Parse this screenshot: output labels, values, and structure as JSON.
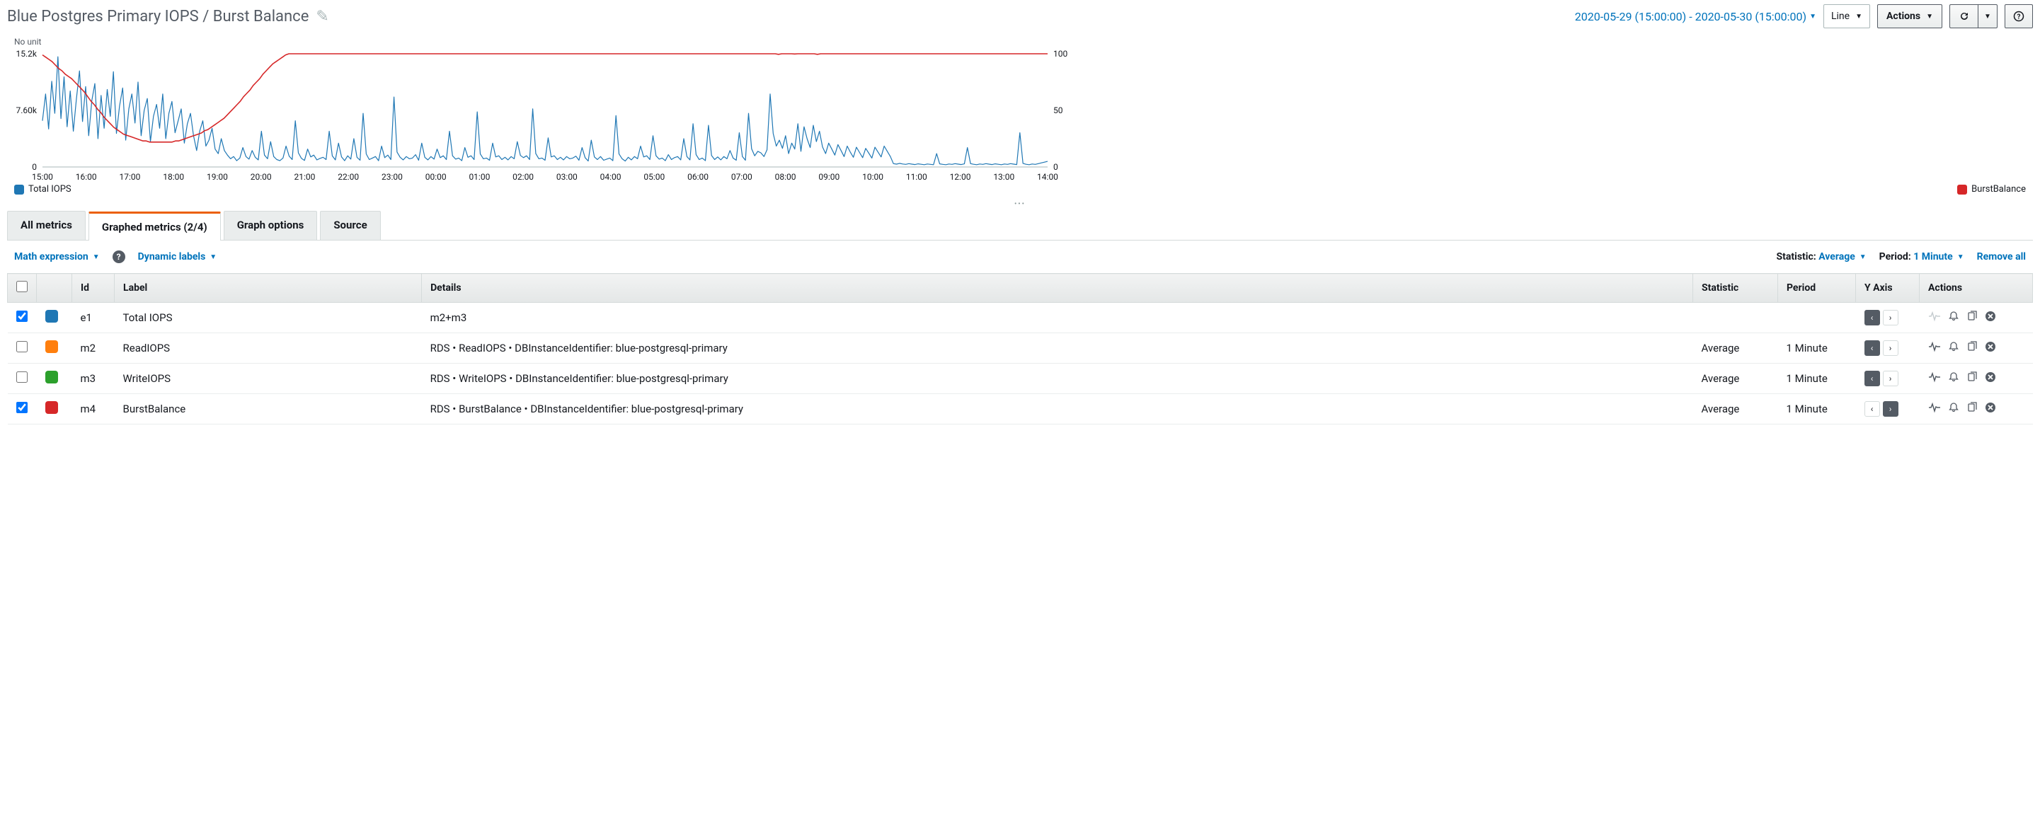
{
  "header": {
    "title": "Blue Postgres Primary IOPS / Burst Balance",
    "time_range": "2020-05-29 (15:00:00) - 2020-05-30 (15:00:00)",
    "chart_type": "Line",
    "actions_label": "Actions"
  },
  "chart": {
    "y_unit": "No unit",
    "left_ticks": [
      "15.2k",
      "7.60k",
      "0"
    ],
    "right_ticks": [
      "100",
      "50",
      "0"
    ],
    "x_ticks": [
      "15:00",
      "16:00",
      "17:00",
      "18:00",
      "19:00",
      "20:00",
      "21:00",
      "22:00",
      "23:00",
      "00:00",
      "01:00",
      "02:00",
      "03:00",
      "04:00",
      "05:00",
      "06:00",
      "07:00",
      "08:00",
      "09:00",
      "10:00",
      "11:00",
      "12:00",
      "13:00",
      "14:00"
    ],
    "left_max": 15200,
    "right_max": 100,
    "series": {
      "total_iops": {
        "label": "Total IOPS",
        "color": "#1f77b4",
        "values": [
          6200,
          9800,
          5100,
          11500,
          7200,
          14800,
          6500,
          12100,
          5400,
          10200,
          4800,
          9100,
          12900,
          6100,
          10800,
          4200,
          8900,
          11200,
          3800,
          9600,
          5200,
          10400,
          6800,
          12800,
          4500,
          8200,
          10600,
          3600,
          7800,
          9800,
          5900,
          11400,
          4200,
          7600,
          9200,
          3400,
          6800,
          8400,
          5200,
          9800,
          3800,
          7200,
          8800,
          4600,
          6200,
          7800,
          3200,
          5800,
          7200,
          4200,
          2200,
          4800,
          6200,
          2800,
          3600,
          5200,
          2400,
          1800,
          3800,
          2200,
          1600,
          1100,
          1400,
          850,
          1200,
          2600,
          1400,
          1050,
          2200,
          1300,
          950,
          4800,
          1600,
          1100,
          3400,
          1400,
          1000,
          850,
          1200,
          2800,
          1450,
          1000,
          6200,
          1900,
          1150,
          880,
          2400,
          1350,
          1600,
          950,
          1150,
          1300,
          1000,
          4800,
          1500,
          950,
          3200,
          1350,
          850,
          1500,
          1050,
          3800,
          1300,
          900,
          7200,
          1750,
          1000,
          1200,
          1400,
          850,
          2800,
          1250,
          1600,
          1000,
          9400,
          2000,
          1300,
          950,
          1400,
          1100,
          1200,
          1650,
          900,
          3200,
          1300,
          950,
          1400,
          1050,
          2400,
          1250,
          1500,
          1000,
          4800,
          1500,
          1050,
          1200,
          850,
          2600,
          1300,
          1500,
          1000,
          7400,
          1750,
          1100,
          1200,
          900,
          3200,
          1350,
          1500,
          1000,
          1300,
          950,
          1400,
          1100,
          3400,
          1550,
          1250,
          1500,
          1000,
          7800,
          1800,
          1100,
          1200,
          900,
          3900,
          1350,
          1500,
          1000,
          1300,
          950,
          1400,
          1100,
          1200,
          1450,
          900,
          2600,
          1250,
          800,
          3600,
          1350,
          1000,
          1400,
          900,
          1050,
          1200,
          850,
          6900,
          1750,
          1100,
          800,
          1300,
          950,
          1400,
          1100,
          2800,
          1350,
          1500,
          1000,
          4200,
          1500,
          1050,
          1200,
          850,
          1650,
          1000,
          1250,
          1400,
          950,
          3800,
          1400,
          950,
          5800,
          1650,
          1000,
          1200,
          850,
          5600,
          1550,
          1000,
          1350,
          950,
          1400,
          1100,
          2200,
          1200,
          900,
          4600,
          1400,
          900,
          7200,
          2450,
          1500,
          2100,
          1900,
          1400,
          2300,
          9800,
          4500,
          2800,
          3600,
          2500,
          4200,
          1800,
          3200,
          2400,
          5800,
          2100,
          5400,
          3800,
          2600,
          5600,
          3400,
          4800,
          2700,
          1800,
          3200,
          2400,
          1600,
          3000,
          2200,
          1400,
          2800,
          2000,
          1300,
          2650,
          1950,
          1250,
          2500,
          1850,
          1200,
          2650,
          2000,
          1350,
          2800,
          2100,
          1400,
          450,
          380,
          480,
          400,
          350,
          450,
          380,
          320,
          420,
          360,
          300,
          400,
          350,
          300,
          1800,
          420,
          350,
          300,
          400,
          350,
          450,
          380,
          320,
          420,
          2600,
          450,
          360,
          300,
          400,
          350,
          450,
          380,
          320,
          420,
          360,
          300,
          400,
          350,
          450,
          380,
          320,
          4600,
          480,
          360,
          300,
          400,
          350,
          450,
          550,
          650,
          750
        ]
      },
      "burst_balance": {
        "label": "BurstBalance",
        "color": "#d62728",
        "values": [
          99,
          97,
          95,
          93,
          90,
          87,
          85,
          82,
          80,
          78,
          75,
          72,
          69,
          66,
          62,
          58,
          55,
          51,
          48,
          44,
          41,
          38,
          35,
          33,
          31,
          29,
          28,
          27,
          26,
          25,
          24,
          23,
          23,
          22,
          22,
          22,
          22,
          22,
          22,
          22,
          22,
          23,
          23,
          24,
          25,
          26,
          27,
          28,
          29,
          30,
          32,
          33,
          35,
          37,
          39,
          41,
          43,
          46,
          49,
          52,
          55,
          58,
          62,
          65,
          68,
          72,
          75,
          78,
          82,
          85,
          88,
          91,
          93,
          95,
          97,
          99,
          100,
          100,
          100,
          100,
          100,
          100,
          100,
          100,
          100,
          100,
          100,
          100,
          100,
          100,
          100,
          100,
          100,
          100,
          100,
          100,
          100,
          100,
          100,
          100,
          100,
          100,
          100,
          100,
          100,
          100,
          100,
          100,
          100,
          100,
          100,
          100,
          100,
          100,
          100,
          100,
          100,
          100,
          100,
          100,
          100,
          100,
          100,
          100,
          100,
          100,
          100,
          100,
          100,
          100,
          100,
          100,
          100,
          100,
          100,
          100,
          100,
          100,
          100,
          100,
          100,
          100,
          100,
          100,
          100,
          100,
          100,
          100,
          100,
          100,
          100,
          100,
          100,
          100,
          100,
          100,
          100,
          100,
          100,
          100,
          100,
          100,
          100,
          100,
          100,
          100,
          100,
          100,
          100,
          100,
          100,
          100,
          100,
          100,
          100,
          100,
          100,
          100,
          100,
          100,
          100,
          100,
          100,
          100,
          100,
          100,
          100,
          100,
          100,
          100,
          100,
          100,
          100,
          100,
          100,
          100,
          100,
          100,
          100,
          100,
          100,
          100,
          100,
          100,
          100,
          100,
          100,
          100,
          100,
          100,
          100,
          100,
          100,
          100,
          100,
          100,
          100,
          100,
          100,
          100,
          100,
          100,
          100,
          100,
          100,
          100,
          100,
          99.5,
          100,
          100,
          100,
          100,
          99.8,
          100,
          100,
          100,
          100,
          100,
          100,
          99.5,
          100,
          100,
          100,
          100,
          100,
          100,
          100,
          100,
          100,
          100,
          100,
          100,
          100,
          100,
          100,
          100,
          100,
          100,
          100,
          100,
          100,
          100,
          100,
          100,
          100,
          100,
          100,
          100,
          100,
          100,
          100,
          100,
          100,
          100,
          100,
          100,
          100,
          100,
          100,
          100,
          100,
          100,
          100,
          100,
          100,
          100,
          100,
          100,
          100,
          100,
          100,
          100,
          100,
          100,
          100,
          100,
          100,
          100,
          100,
          100,
          100,
          100,
          100,
          100,
          100,
          100,
          100,
          100,
          100,
          100,
          100
        ]
      }
    }
  },
  "tabs": {
    "all": "All metrics",
    "graphed": "Graphed metrics (2/4)",
    "options": "Graph options",
    "source": "Source"
  },
  "toolbar": {
    "math": "Math expression",
    "dynamic": "Dynamic labels",
    "stat_label": "Statistic:",
    "stat_value": "Average",
    "period_label": "Period:",
    "period_value": "1 Minute",
    "remove": "Remove all"
  },
  "table": {
    "headers": {
      "id": "Id",
      "label": "Label",
      "details": "Details",
      "statistic": "Statistic",
      "period": "Period",
      "yaxis": "Y Axis",
      "actions": "Actions"
    },
    "rows": [
      {
        "checked": true,
        "color": "#1f77b4",
        "id": "e1",
        "label": "Total IOPS",
        "details": "m2+m3",
        "statistic": "",
        "period": "",
        "yaxis": "left",
        "pulse_dim": true
      },
      {
        "checked": false,
        "color": "#ff7f0e",
        "id": "m2",
        "label": "ReadIOPS",
        "details": "RDS • ReadIOPS • DBInstanceIdentifier: blue-postgresql-primary",
        "statistic": "Average",
        "period": "1 Minute",
        "yaxis": "left",
        "pulse_dim": false
      },
      {
        "checked": false,
        "color": "#2ca02c",
        "id": "m3",
        "label": "WriteIOPS",
        "details": "RDS • WriteIOPS • DBInstanceIdentifier: blue-postgresql-primary",
        "statistic": "Average",
        "period": "1 Minute",
        "yaxis": "left",
        "pulse_dim": false
      },
      {
        "checked": true,
        "color": "#d62728",
        "id": "m4",
        "label": "BurstBalance",
        "details": "RDS • BurstBalance • DBInstanceIdentifier: blue-postgresql-primary",
        "statistic": "Average",
        "period": "1 Minute",
        "yaxis": "right",
        "pulse_dim": false
      }
    ]
  }
}
